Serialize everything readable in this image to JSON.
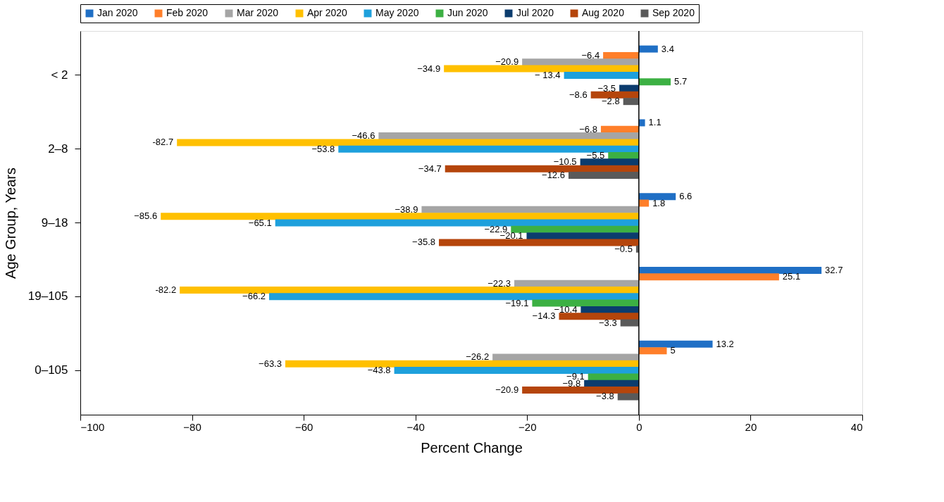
{
  "chart_data": {
    "type": "bar",
    "orientation": "horizontal",
    "xlabel": "Percent Change",
    "ylabel": "Age Group, Years",
    "categories": [
      "< 2",
      "2–8",
      "9–18",
      "19–105",
      "0–105"
    ],
    "series": [
      {
        "name": "Jan 2020",
        "color": "#1f6fc5",
        "values": [
          3.4,
          1.1,
          6.6,
          32.7,
          13.2
        ],
        "value_labels": [
          "3.4",
          "1.1",
          "6.6",
          "32.7",
          "13.2"
        ]
      },
      {
        "name": "Feb 2020",
        "color": "#ff7f2a",
        "values": [
          -6.4,
          -6.8,
          1.8,
          25.1,
          5
        ],
        "value_labels": [
          "−6.4",
          "−6.8",
          "1.8",
          "25.1",
          "5"
        ]
      },
      {
        "name": "Mar 2020",
        "color": "#a5a5a5",
        "values": [
          -20.9,
          -46.6,
          -38.9,
          -22.3,
          -26.2
        ],
        "value_labels": [
          "−20.9",
          "−46.6",
          "−38.9",
          "−22.3",
          "−26.2"
        ]
      },
      {
        "name": "Apr 2020",
        "color": "#ffc000",
        "values": [
          -34.9,
          -82.7,
          -85.6,
          -82.2,
          -63.3
        ],
        "value_labels": [
          "−34.9",
          "-82.7",
          "−85.6",
          "-82.2",
          "−63.3"
        ]
      },
      {
        "name": "May 2020",
        "color": "#1ea0dc",
        "values": [
          -13.4,
          -53.8,
          -65.1,
          -66.2,
          -43.8
        ],
        "value_labels": [
          "− 13.4",
          "−53.8",
          "−65.1",
          "−66.2",
          "−43.8"
        ]
      },
      {
        "name": "Jun 2020",
        "color": "#3cb043",
        "values": [
          5.7,
          -5.5,
          -22.9,
          -19.1,
          -9.1
        ],
        "value_labels": [
          "5.7",
          "−5.5",
          "−22.9",
          "−19.1",
          "−9.1"
        ]
      },
      {
        "name": "Jul 2020",
        "color": "#0b3c6e",
        "values": [
          -3.5,
          -10.5,
          -20.1,
          -10.4,
          -9.8
        ],
        "value_labels": [
          "−3.5",
          "−10.5",
          "−20.1",
          "−10.4",
          "−9.8"
        ]
      },
      {
        "name": "Aug 2020",
        "color": "#b5450b",
        "values": [
          -8.6,
          -34.7,
          -35.8,
          -14.3,
          -20.9
        ],
        "value_labels": [
          "−8.6",
          "−34.7",
          "−35.8",
          "−14.3",
          "−20.9"
        ]
      },
      {
        "name": "Sep 2020",
        "color": "#5a5a5a",
        "values": [
          -2.8,
          -12.6,
          -0.5,
          -3.3,
          -3.8
        ],
        "value_labels": [
          "−2.8",
          "−12.6",
          "−0.5",
          "−3.3",
          "−3.8"
        ]
      }
    ],
    "xlim": [
      -100,
      40
    ],
    "xticks": [
      -100,
      -80,
      -60,
      -40,
      -20,
      0,
      20,
      40
    ],
    "ref_lines": [
      {
        "axis": "x",
        "value": 0
      }
    ],
    "legend": "top",
    "grid": false
  }
}
